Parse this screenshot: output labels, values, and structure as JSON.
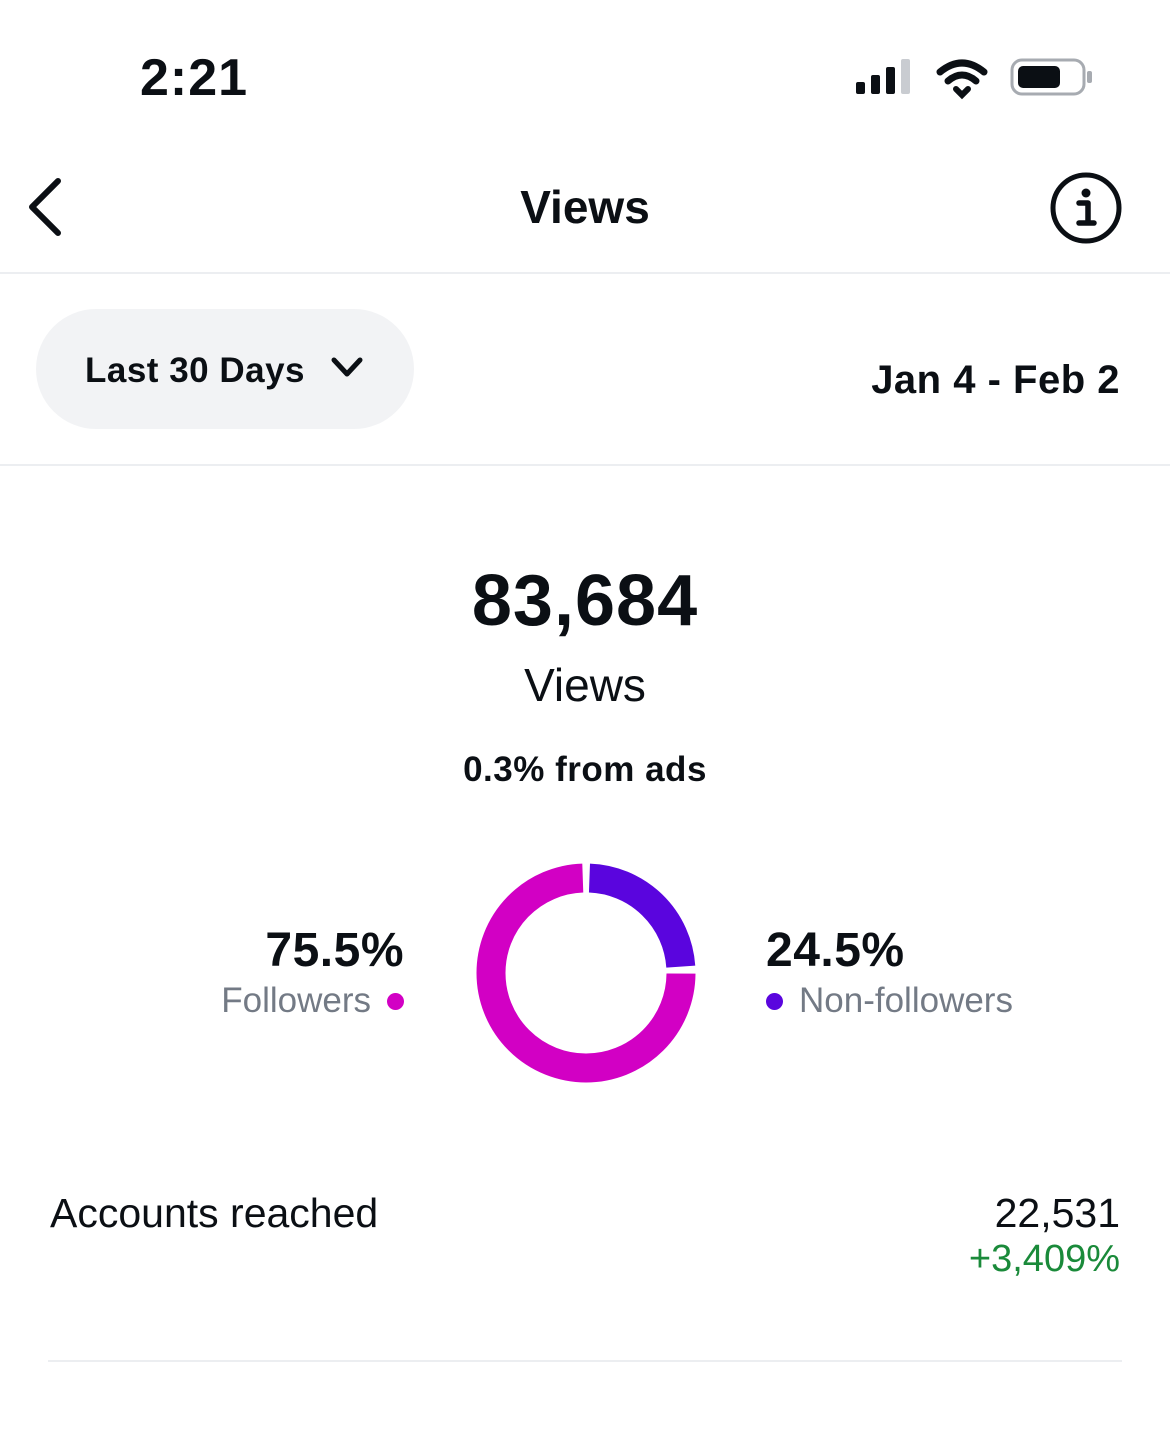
{
  "status_bar": {
    "time": "2:21",
    "icons": [
      "cellular-signal-icon",
      "wifi-icon",
      "battery-icon"
    ]
  },
  "header": {
    "title": "Views",
    "back_icon": "chevron-left-icon",
    "info_icon": "info-icon"
  },
  "filter": {
    "range_label": "Last 30 Days",
    "dropdown_icon": "chevron-down-icon",
    "date_range": "Jan 4 - Feb 2"
  },
  "summary": {
    "total": "83,684",
    "total_label": "Views",
    "ads_note": "0.3% from ads"
  },
  "breakdown": {
    "followers": {
      "percent_label": "75.5%",
      "label": "Followers",
      "value": 75.5,
      "color": "#d200c4"
    },
    "non_followers": {
      "percent_label": "24.5%",
      "label": "Non-followers",
      "value": 24.5,
      "color": "#5a05de"
    }
  },
  "metrics": {
    "accounts_reached": {
      "label": "Accounts reached",
      "value": "22,531",
      "change": "+3,409%"
    }
  }
}
